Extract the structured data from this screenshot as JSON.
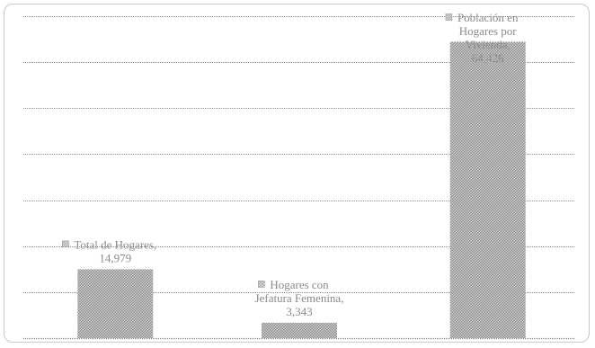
{
  "colors": {
    "bar": "#9e9e9e",
    "bar_light": "#b9b9b9",
    "text": "#8a8a8a",
    "grid": "#8c8c8c"
  },
  "chart_data": {
    "type": "bar",
    "title": "",
    "xlabel": "",
    "ylabel": "",
    "grid": true,
    "ylim": [
      0,
      70000
    ],
    "categories": [
      "Total de Hogares",
      "Hogares con Jefatura Femenina",
      "Población en Hogares por Vivienda"
    ],
    "values": [
      14979,
      3343,
      64426
    ],
    "value_labels": [
      "14,979",
      "3,343",
      "64,426"
    ],
    "data_label_lines": [
      [
        "Total de Hogares,",
        "14,979"
      ],
      [
        "Hogares con",
        "Jefatura Femenina,",
        "3,343"
      ],
      [
        "Población en",
        "Hogares por",
        "Vivienda,",
        "64,426"
      ]
    ]
  }
}
